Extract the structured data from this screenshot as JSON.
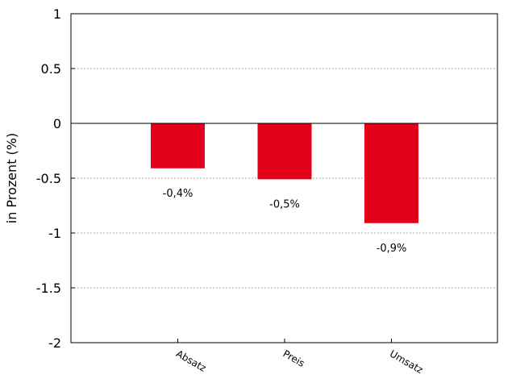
{
  "chart_data": {
    "type": "bar",
    "categories": [
      "Absatz",
      "Preis",
      "Umsatz"
    ],
    "values": [
      -0.41,
      -0.51,
      -0.91
    ],
    "data_labels": [
      "-0,4%",
      "-0,5%",
      "-0,9%"
    ],
    "ylabel": "in Prozent (%)",
    "ylim": [
      -2,
      1
    ],
    "yticks": [
      1,
      0.5,
      0,
      -0.5,
      -1,
      -1.5,
      -2
    ],
    "ytick_labels": [
      "1",
      "0.5",
      "0",
      "-0.5",
      "-1",
      "-1.5",
      "-2"
    ],
    "grid": "horizontal-dotted",
    "bar_color": "#e2001a",
    "zero_line": true
  }
}
